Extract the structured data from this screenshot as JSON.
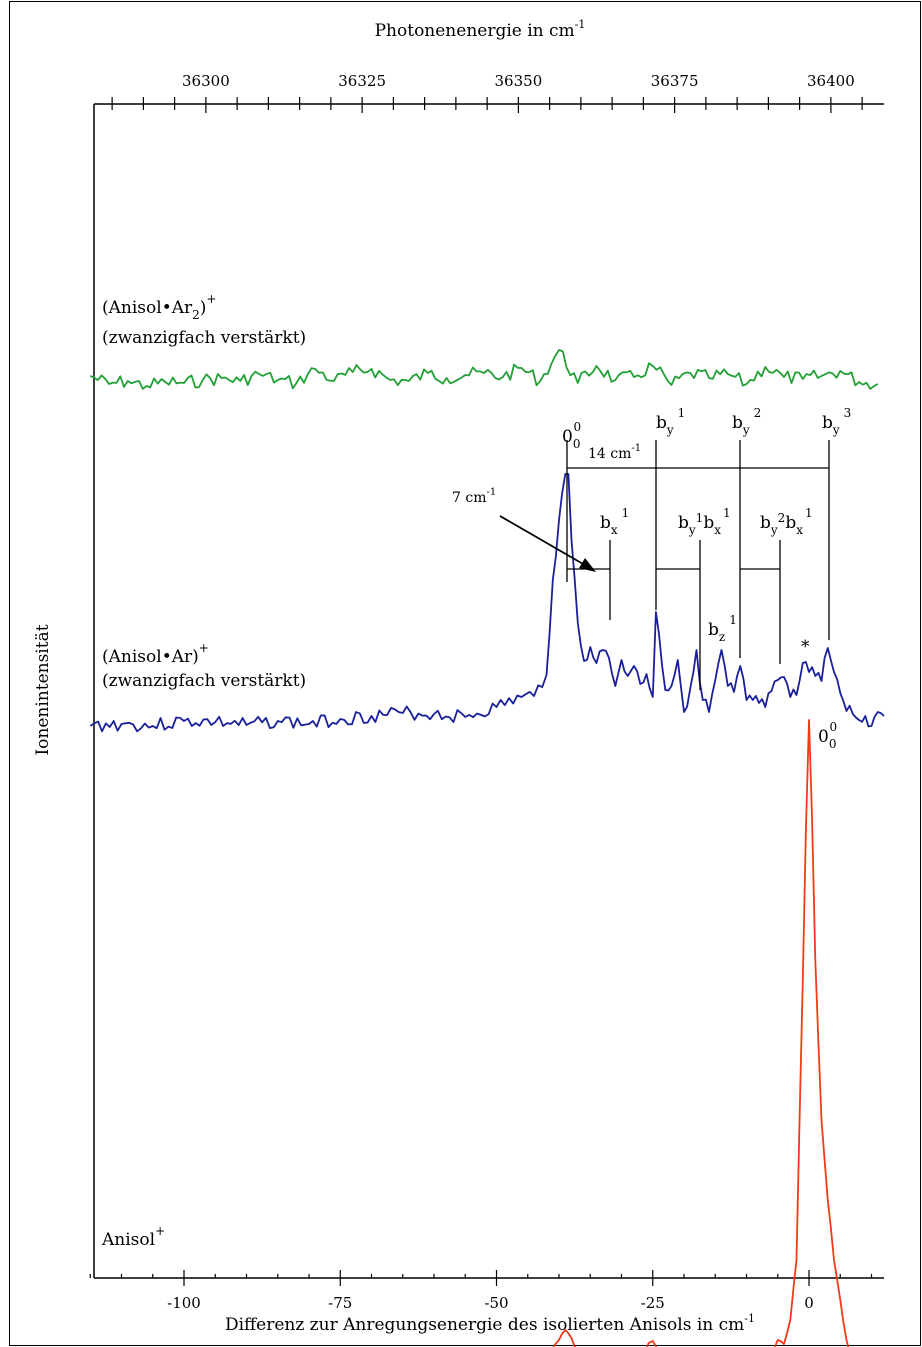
{
  "chart_data": {
    "type": "line",
    "top_axis": {
      "title": "Photonenenergie in cm",
      "title_sup": "-1",
      "ticks": [
        36300,
        36325,
        36350,
        36375,
        36400
      ],
      "tick_labels": [
        "36300",
        "36325",
        "36350",
        "36375",
        "36400"
      ]
    },
    "x_axis": {
      "title": "Differenz zur Anregungsenergie des isolierten Anisols in cm",
      "title_sup": "-1",
      "ticks": [
        -100,
        -75,
        -50,
        -25,
        0
      ],
      "tick_labels": [
        "-100",
        "-75",
        "-50",
        "-25",
        "0"
      ],
      "range": [
        -115,
        12
      ]
    },
    "y_axis": {
      "title": "Ionenintensität",
      "ticks": []
    },
    "series": [
      {
        "name": "(Anisol•Ar2)+",
        "label_line1": "(Anisol•Ar",
        "label_sub": "2",
        "label_close": ")",
        "label_sup": "+",
        "label_line2": "(zwanzigfach verstärkt)",
        "color": "#22a035",
        "points": [
          [
            -115,
            376
          ],
          [
            -112,
            384
          ],
          [
            -109,
            381
          ],
          [
            -106,
            386
          ],
          [
            -103,
            382
          ],
          [
            -100,
            383
          ],
          [
            -97,
            380
          ],
          [
            -94,
            378
          ],
          [
            -91,
            381
          ],
          [
            -88,
            374
          ],
          [
            -85,
            380
          ],
          [
            -82,
            383
          ],
          [
            -79,
            369
          ],
          [
            -76,
            381
          ],
          [
            -73,
            372
          ],
          [
            -70,
            369
          ],
          [
            -67,
            380
          ],
          [
            -64,
            381
          ],
          [
            -61,
            373
          ],
          [
            -58,
            378
          ],
          [
            -55,
            375
          ],
          [
            -52,
            373
          ],
          [
            -49,
            377
          ],
          [
            -46,
            368
          ],
          [
            -43,
            381
          ],
          [
            -40,
            350
          ],
          [
            -37,
            383
          ],
          [
            -34,
            366
          ],
          [
            -31,
            380
          ],
          [
            -28,
            377
          ],
          [
            -25,
            366
          ],
          [
            -22,
            385
          ],
          [
            -19,
            373
          ],
          [
            -16,
            378
          ],
          [
            -13,
            374
          ],
          [
            -10,
            384
          ],
          [
            -7,
            367
          ],
          [
            -4,
            377
          ],
          [
            -1,
            379
          ],
          [
            2,
            376
          ],
          [
            5,
            371
          ],
          [
            8,
            382
          ],
          [
            11,
            384
          ]
        ],
        "noise_seed": 7
      },
      {
        "name": "(Anisol•Ar)+",
        "label_line1": "(Anisol•Ar)",
        "label_sup": "+",
        "label_line2": "(zwanzigfach verstärkt)",
        "color": "#1a1f9c",
        "points": [
          [
            -115,
            726
          ],
          [
            -110,
            724
          ],
          [
            -105,
            726
          ],
          [
            -100,
            721
          ],
          [
            -95,
            722
          ],
          [
            -90,
            725
          ],
          [
            -85,
            721
          ],
          [
            -80,
            724
          ],
          [
            -75,
            719
          ],
          [
            -70,
            716
          ],
          [
            -65,
            713
          ],
          [
            -60,
            714
          ],
          [
            -55,
            717
          ],
          [
            -50,
            707
          ],
          [
            -46,
            697
          ],
          [
            -44,
            696
          ],
          [
            -42,
            675
          ],
          [
            -41,
            580
          ],
          [
            -40,
            520
          ],
          [
            -39,
            474
          ],
          [
            -38.5,
            474
          ],
          [
            -38,
            540
          ],
          [
            -37,
            623
          ],
          [
            -36,
            661
          ],
          [
            -35,
            647
          ],
          [
            -34,
            663
          ],
          [
            -33,
            650
          ],
          [
            -32,
            658
          ],
          [
            -31,
            686
          ],
          [
            -30,
            660
          ],
          [
            -29,
            676
          ],
          [
            -28,
            666
          ],
          [
            -27,
            684
          ],
          [
            -26,
            674
          ],
          [
            -25,
            697
          ],
          [
            -24.5,
            612
          ],
          [
            -24,
            634
          ],
          [
            -23,
            690
          ],
          [
            -22,
            686
          ],
          [
            -21,
            660
          ],
          [
            -20,
            712
          ],
          [
            -19,
            688
          ],
          [
            -18,
            650
          ],
          [
            -17,
            700
          ],
          [
            -16,
            712
          ],
          [
            -15,
            680
          ],
          [
            -14,
            650
          ],
          [
            -13,
            686
          ],
          [
            -12,
            692
          ],
          [
            -11,
            666
          ],
          [
            -10,
            700
          ],
          [
            -9,
            700
          ],
          [
            -8,
            703
          ],
          [
            -7,
            707
          ],
          [
            -6,
            691
          ],
          [
            -5,
            680
          ],
          [
            -4,
            677
          ],
          [
            -3,
            697
          ],
          [
            -2,
            695
          ],
          [
            -1,
            663
          ],
          [
            0,
            672
          ],
          [
            1,
            676
          ],
          [
            2,
            681
          ],
          [
            3,
            648
          ],
          [
            4,
            672
          ],
          [
            5,
            693
          ],
          [
            6,
            711
          ],
          [
            7,
            714
          ],
          [
            8,
            720
          ],
          [
            9,
            716
          ],
          [
            10,
            726
          ],
          [
            11,
            712
          ],
          [
            12,
            716
          ]
        ],
        "noise_seed": 3
      },
      {
        "name": "Anisol+",
        "label_line1": "Anisol",
        "label_sup": "+",
        "color": "#f03a18",
        "points": [
          [
            -115,
            1374
          ],
          [
            -110,
            1373
          ],
          [
            -105,
            1372
          ],
          [
            -100,
            1372
          ],
          [
            -95,
            1371
          ],
          [
            -90,
            1371
          ],
          [
            -85,
            1370
          ],
          [
            -80,
            1369
          ],
          [
            -75,
            1369
          ],
          [
            -70,
            1367
          ],
          [
            -65,
            1366
          ],
          [
            -60,
            1366
          ],
          [
            -55,
            1365
          ],
          [
            -50,
            1364
          ],
          [
            -45,
            1362
          ],
          [
            -42,
            1358
          ],
          [
            -40,
            1340
          ],
          [
            -39,
            1330
          ],
          [
            -38,
            1338
          ],
          [
            -37,
            1352
          ],
          [
            -35,
            1356
          ],
          [
            -33,
            1355
          ],
          [
            -30,
            1358
          ],
          [
            -27,
            1356
          ],
          [
            -25,
            1341
          ],
          [
            -24,
            1353
          ],
          [
            -22,
            1357
          ],
          [
            -20,
            1355
          ],
          [
            -18,
            1358
          ],
          [
            -16,
            1355
          ],
          [
            -14,
            1357
          ],
          [
            -12,
            1356
          ],
          [
            -10,
            1352
          ],
          [
            -8,
            1353
          ],
          [
            -6,
            1350
          ],
          [
            -5,
            1340
          ],
          [
            -4,
            1344
          ],
          [
            -3,
            1320
          ],
          [
            -2,
            1260
          ],
          [
            -1,
            980
          ],
          [
            -0.5,
            830
          ],
          [
            0,
            720
          ],
          [
            0.5,
            820
          ],
          [
            1,
            960
          ],
          [
            2,
            1120
          ],
          [
            3,
            1200
          ],
          [
            4,
            1260
          ],
          [
            5,
            1300
          ],
          [
            6,
            1340
          ],
          [
            7,
            1362
          ],
          [
            8,
            1366
          ],
          [
            9,
            1369
          ],
          [
            10,
            1364
          ],
          [
            11,
            1368
          ],
          [
            12,
            1370
          ]
        ],
        "noise_seed": 11
      }
    ],
    "annotations": {
      "origin_top": "0",
      "origin_sub": "0",
      "origin_sup": "0",
      "by1": "b",
      "by1_sub": "y",
      "by1_sup": "1",
      "by2": "b",
      "by2_sub": "y",
      "by2_sup": "2",
      "by3": "b",
      "by3_sub": "y",
      "by3_sup": "3",
      "bx1": "b",
      "bx1_sub": "x",
      "bx1_sup": "1",
      "bybx": "b",
      "bybx_sub1": "y",
      "bybx_sup1": "1",
      "bybx_b2": "b",
      "bybx_sub2": "x",
      "bybx_sup2": "1",
      "by2bx": "b",
      "by2bx_sub1": "y",
      "by2bx_sup1": "2",
      "by2bx_b2": "b",
      "by2bx_sub2": "x",
      "by2bx_sup2": "1",
      "bz1": "b",
      "bz1_sub": "z",
      "bz1_sup": "1",
      "spacing14": "14 cm",
      "spacing14_sup": "-1",
      "spacing7": "7 cm",
      "spacing7_sup": "-1",
      "star": "*",
      "origin_bottom": "0",
      "origin_bottom_sub": "0",
      "origin_bottom_sup": "0"
    }
  }
}
